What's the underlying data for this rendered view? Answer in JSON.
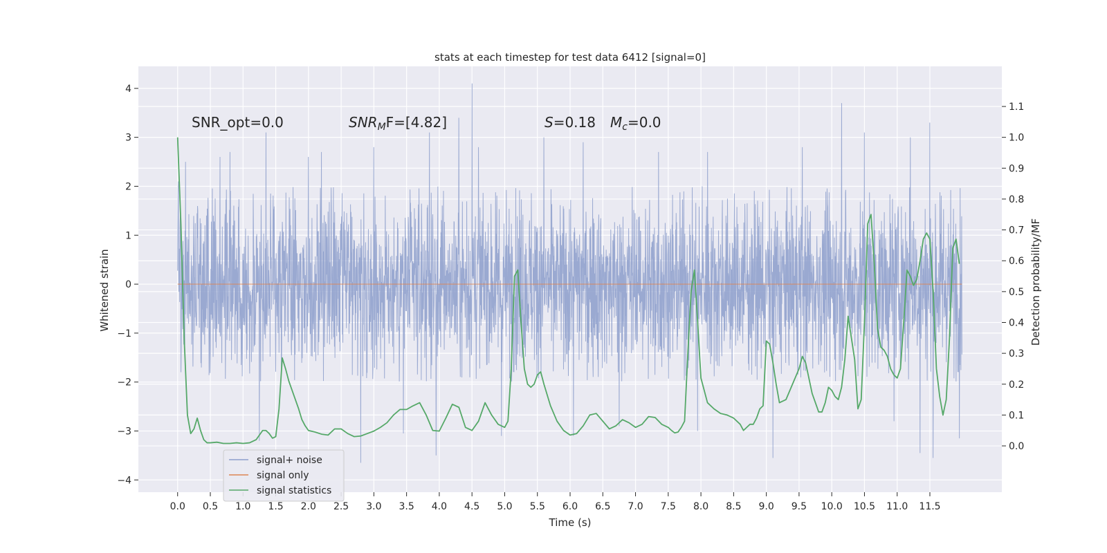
{
  "chart_data": {
    "type": "line",
    "title": "stats at each timestep for test data 6412 [signal=0]",
    "xlabel": "Time (s)",
    "ylabel": "Whitened strain",
    "ylabel_right": "Detection probability/MF",
    "xlim": [
      -0.6,
      12.6
    ],
    "ylim": [
      -4.25,
      4.45
    ],
    "ylim_right": [
      -0.15,
      1.23
    ],
    "x_ticks": [
      0.0,
      0.5,
      1.0,
      1.5,
      2.0,
      2.5,
      3.0,
      3.5,
      4.0,
      4.5,
      5.0,
      5.5,
      6.0,
      6.5,
      7.0,
      7.5,
      8.0,
      8.5,
      9.0,
      9.5,
      10.0,
      10.5,
      11.0,
      11.5
    ],
    "x_tick_labels": [
      "0.0",
      "0.5",
      "1.0",
      "1.5",
      "2.0",
      "2.5",
      "3.0",
      "3.5",
      "4.0",
      "4.5",
      "5.0",
      "5.5",
      "6.0",
      "6.5",
      "7.0",
      "7.5",
      "8.0",
      "8.5",
      "9.0",
      "9.5",
      "10.0",
      "10.5",
      "11.0",
      "11.5"
    ],
    "y_ticks": [
      -4,
      -3,
      -2,
      -1,
      0,
      1,
      2,
      3,
      4
    ],
    "y_tick_labels": [
      "−4",
      "−3",
      "−2",
      "−1",
      "0",
      "1",
      "2",
      "3",
      "4"
    ],
    "y_right_ticks": [
      0.0,
      0.1,
      0.2,
      0.3,
      0.4,
      0.5,
      0.6,
      0.7,
      0.8,
      0.9,
      1.0,
      1.1
    ],
    "y_right_tick_labels": [
      "0.0",
      "0.1",
      "0.2",
      "0.3",
      "0.4",
      "0.5",
      "0.6",
      "0.7",
      "0.8",
      "0.9",
      "1.0",
      "1.1"
    ],
    "grid": true,
    "legend_position": "lower-left",
    "annotations": {
      "snr_opt": "SNR_opt=0.0",
      "snr_mf_main": "SNR",
      "snr_mf_sub": "M",
      "snr_mf_rest": "F=[4.82]",
      "s_main": "S",
      "s_rest": "=0.18",
      "mc_main": "M",
      "mc_sub": "c",
      "mc_rest": "=0.0"
    },
    "series": [
      {
        "name": "signal+ noise",
        "color": "#8c9ecb",
        "axis": "left",
        "x_range": [
          0.0,
          11.99
        ],
        "n_points": 3072,
        "envelope_upper": 2.0,
        "envelope_lower": -2.0,
        "peak_upper": [
          [
            0.01,
            2.1
          ],
          [
            0.12,
            2.5
          ],
          [
            0.65,
            2.6
          ],
          [
            0.8,
            2.7
          ],
          [
            1.35,
            3.1
          ],
          [
            2.0,
            2.6
          ],
          [
            2.2,
            2.7
          ],
          [
            3.0,
            2.8
          ],
          [
            3.85,
            3.1
          ],
          [
            4.3,
            3.4
          ],
          [
            4.5,
            4.1
          ],
          [
            4.6,
            2.8
          ],
          [
            5.6,
            3.0
          ],
          [
            6.2,
            2.9
          ],
          [
            7.35,
            2.7
          ],
          [
            7.95,
            3.0
          ],
          [
            8.1,
            2.7
          ],
          [
            9.55,
            2.8
          ],
          [
            10.15,
            3.7
          ],
          [
            10.5,
            3.1
          ],
          [
            11.2,
            3.0
          ],
          [
            11.5,
            3.3
          ],
          [
            11.95,
            2.0
          ]
        ],
        "peak_lower": [
          [
            0.05,
            -1.8
          ],
          [
            1.25,
            -3.2
          ],
          [
            2.8,
            -3.65
          ],
          [
            3.45,
            -3.05
          ],
          [
            3.95,
            -3.5
          ],
          [
            4.95,
            -3.1
          ],
          [
            6.05,
            -3.1
          ],
          [
            6.75,
            -2.9
          ],
          [
            7.95,
            -3.0
          ],
          [
            9.1,
            -3.55
          ],
          [
            10.95,
            -2.8
          ],
          [
            11.35,
            -3.45
          ],
          [
            11.55,
            -3.55
          ],
          [
            11.95,
            -3.15
          ]
        ]
      },
      {
        "name": "signal only",
        "color": "#dd8452",
        "axis": "left",
        "x": [
          0.0,
          11.99
        ],
        "y": [
          0.0,
          0.0
        ]
      },
      {
        "name": "signal statistics",
        "color": "#55a868",
        "axis": "right",
        "x": [
          0.0,
          0.05,
          0.1,
          0.15,
          0.2,
          0.25,
          0.3,
          0.35,
          0.4,
          0.45,
          0.5,
          0.6,
          0.7,
          0.8,
          0.9,
          1.0,
          1.1,
          1.2,
          1.3,
          1.35,
          1.4,
          1.45,
          1.5,
          1.55,
          1.6,
          1.65,
          1.7,
          1.75,
          1.8,
          1.85,
          1.9,
          1.95,
          2.0,
          2.1,
          2.2,
          2.3,
          2.4,
          2.5,
          2.6,
          2.7,
          2.8,
          2.9,
          3.0,
          3.1,
          3.2,
          3.3,
          3.4,
          3.5,
          3.6,
          3.7,
          3.8,
          3.9,
          4.0,
          4.1,
          4.2,
          4.3,
          4.4,
          4.5,
          4.6,
          4.7,
          4.8,
          4.9,
          5.0,
          5.05,
          5.1,
          5.15,
          5.2,
          5.25,
          5.3,
          5.35,
          5.4,
          5.45,
          5.5,
          5.55,
          5.6,
          5.7,
          5.8,
          5.9,
          6.0,
          6.1,
          6.2,
          6.3,
          6.4,
          6.5,
          6.6,
          6.7,
          6.8,
          6.9,
          7.0,
          7.1,
          7.2,
          7.3,
          7.4,
          7.5,
          7.55,
          7.6,
          7.65,
          7.7,
          7.75,
          7.8,
          7.85,
          7.9,
          7.95,
          8.0,
          8.1,
          8.2,
          8.3,
          8.4,
          8.5,
          8.6,
          8.65,
          8.7,
          8.75,
          8.8,
          8.85,
          8.9,
          8.95,
          9.0,
          9.05,
          9.1,
          9.15,
          9.2,
          9.3,
          9.4,
          9.5,
          9.55,
          9.6,
          9.65,
          9.7,
          9.75,
          9.8,
          9.85,
          9.9,
          9.95,
          10.0,
          10.05,
          10.1,
          10.15,
          10.2,
          10.25,
          10.3,
          10.35,
          10.4,
          10.45,
          10.5,
          10.55,
          10.6,
          10.65,
          10.7,
          10.75,
          10.8,
          10.85,
          10.9,
          10.95,
          11.0,
          11.05,
          11.1,
          11.15,
          11.2,
          11.25,
          11.3,
          11.35,
          11.4,
          11.45,
          11.5,
          11.55,
          11.6,
          11.65,
          11.7,
          11.75,
          11.8,
          11.85,
          11.9,
          11.95
        ],
        "y": [
          1.0,
          0.72,
          0.35,
          0.1,
          0.04,
          0.055,
          0.09,
          0.05,
          0.02,
          0.01,
          0.01,
          0.012,
          0.008,
          0.008,
          0.01,
          0.008,
          0.01,
          0.02,
          0.05,
          0.05,
          0.04,
          0.025,
          0.03,
          0.12,
          0.285,
          0.25,
          0.21,
          0.18,
          0.15,
          0.12,
          0.085,
          0.065,
          0.05,
          0.045,
          0.038,
          0.035,
          0.055,
          0.055,
          0.04,
          0.03,
          0.032,
          0.04,
          0.048,
          0.06,
          0.075,
          0.1,
          0.118,
          0.118,
          0.13,
          0.14,
          0.1,
          0.05,
          0.048,
          0.09,
          0.135,
          0.125,
          0.06,
          0.05,
          0.08,
          0.14,
          0.1,
          0.07,
          0.06,
          0.08,
          0.25,
          0.55,
          0.57,
          0.4,
          0.25,
          0.2,
          0.19,
          0.2,
          0.23,
          0.24,
          0.2,
          0.13,
          0.08,
          0.05,
          0.035,
          0.04,
          0.065,
          0.1,
          0.105,
          0.08,
          0.055,
          0.065,
          0.085,
          0.075,
          0.06,
          0.07,
          0.095,
          0.092,
          0.07,
          0.06,
          0.05,
          0.042,
          0.045,
          0.06,
          0.08,
          0.3,
          0.5,
          0.57,
          0.4,
          0.22,
          0.14,
          0.12,
          0.105,
          0.1,
          0.09,
          0.07,
          0.05,
          0.06,
          0.07,
          0.07,
          0.09,
          0.12,
          0.13,
          0.34,
          0.33,
          0.27,
          0.2,
          0.14,
          0.15,
          0.2,
          0.25,
          0.29,
          0.27,
          0.22,
          0.17,
          0.14,
          0.11,
          0.11,
          0.14,
          0.19,
          0.18,
          0.16,
          0.15,
          0.19,
          0.28,
          0.42,
          0.35,
          0.28,
          0.12,
          0.15,
          0.4,
          0.72,
          0.75,
          0.59,
          0.38,
          0.32,
          0.31,
          0.29,
          0.25,
          0.23,
          0.22,
          0.25,
          0.4,
          0.57,
          0.55,
          0.52,
          0.54,
          0.6,
          0.67,
          0.69,
          0.67,
          0.5,
          0.25,
          0.16,
          0.1,
          0.15,
          0.35,
          0.64,
          0.67,
          0.59
        ]
      }
    ]
  }
}
